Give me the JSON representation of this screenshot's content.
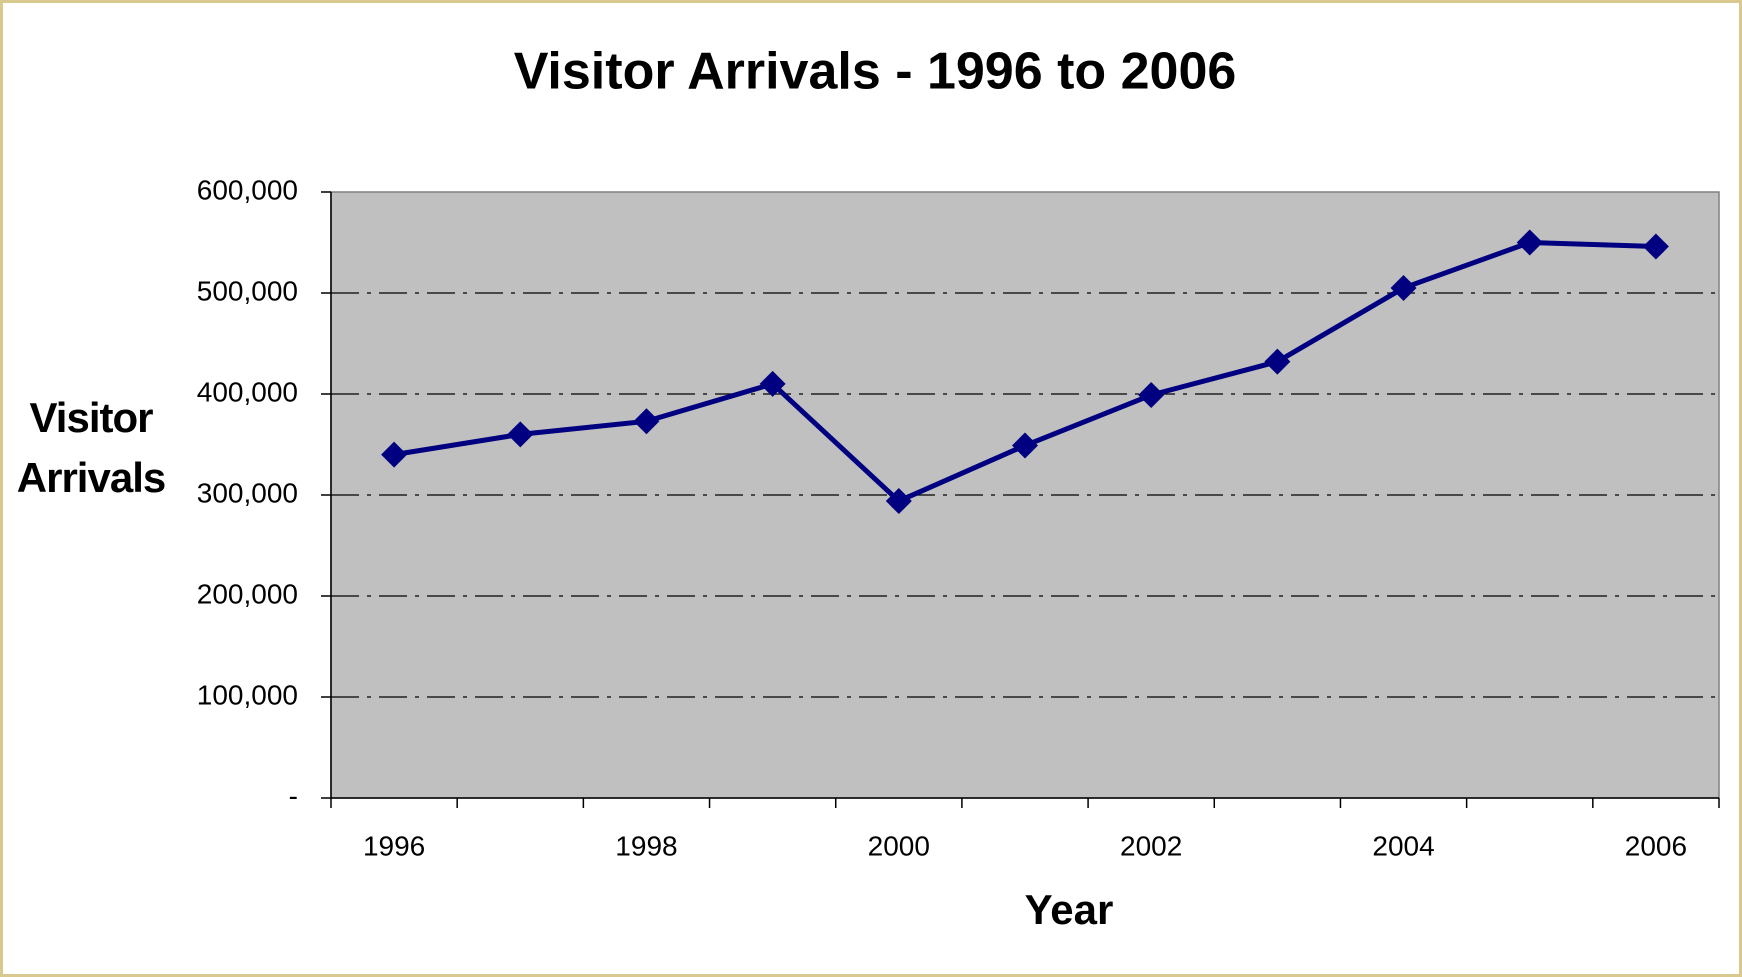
{
  "chart_data": {
    "type": "line",
    "title": "Visitor Arrivals - 1996 to 2006",
    "x_label": "Year",
    "y_label": "Visitor Arrivals",
    "categories": [
      "1996",
      null,
      "1998",
      null,
      "2000",
      null,
      "2002",
      null,
      "2004",
      null,
      "2006"
    ],
    "series": [
      {
        "name": "Visitor Arrivals",
        "color": "#000080",
        "values": [
          340000,
          360000,
          373000,
          410000,
          294000,
          349000,
          399000,
          432000,
          505000,
          550000,
          546000
        ]
      }
    ],
    "ylim": [
      0,
      600000
    ],
    "yticks": [
      {
        "value": 0,
        "label": "-"
      },
      {
        "value": 100000,
        "label": "100,000"
      },
      {
        "value": 200000,
        "label": "200,000"
      },
      {
        "value": 300000,
        "label": "300,000"
      },
      {
        "value": 400000,
        "label": "400,000"
      },
      {
        "value": 500000,
        "label": "500,000"
      },
      {
        "value": 600000,
        "label": "600,000"
      }
    ],
    "grid": true,
    "plot_background": "#c0c0c0"
  }
}
